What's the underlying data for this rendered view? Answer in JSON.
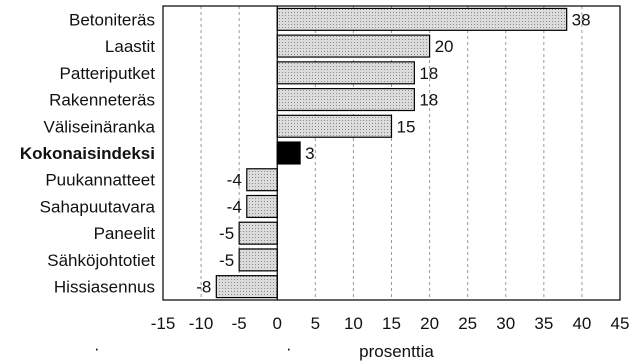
{
  "chart_data": {
    "type": "bar",
    "orientation": "horizontal",
    "categories": [
      "Betoniteräs",
      "Laastit",
      "Patteriputket",
      "Rakenneteräs",
      "Väliseinäranka",
      "Kokonaisindeksi",
      "Puukannatteet",
      "Sahapuutavara",
      "Paneelit",
      "Sähköjohtotiet",
      "Hissiasennus"
    ],
    "values": [
      38,
      20,
      18,
      18,
      15,
      3,
      -4,
      -4,
      -5,
      -5,
      -8
    ],
    "highlight_category": "Kokonaisindeksi",
    "xlabel": "prosenttia",
    "xlim": [
      -15,
      45
    ],
    "xticks": [
      "-15",
      "-10",
      "-5",
      "0",
      "5",
      "10",
      "15",
      "20",
      "25",
      "30",
      "35",
      "40",
      "45"
    ],
    "grid": "vertical dashed",
    "colors": {
      "bar_fill": "#d9d9d9",
      "highlight_fill": "#000000",
      "bar_stroke": "#000000"
    }
  }
}
